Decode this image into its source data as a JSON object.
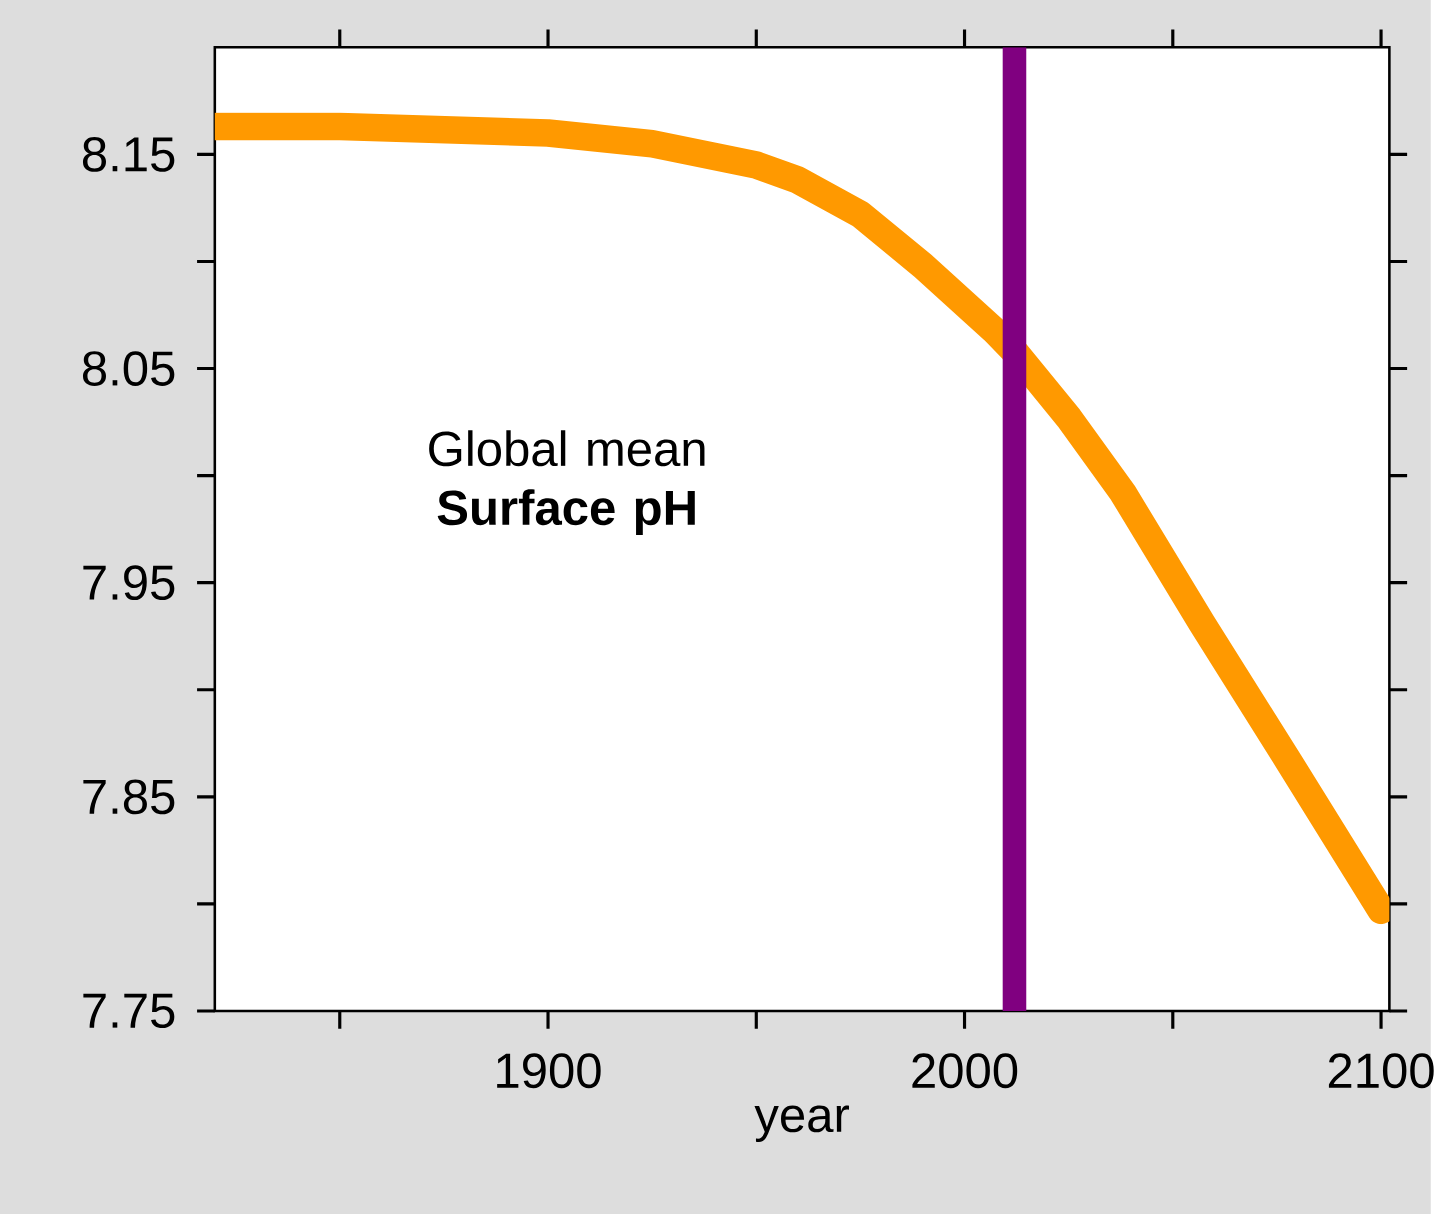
{
  "chart_data": {
    "type": "line",
    "xlabel": "year",
    "annotations": [
      "Global mean **Surface pH**"
    ],
    "series": [
      {
        "color": "#ff9900",
        "x": [
          1820,
          1850,
          1900,
          1925,
          1950,
          1960,
          1975,
          1990,
          2007,
          2012,
          2025,
          2038,
          2057,
          2078,
          2100
        ],
        "values": [
          8.163,
          8.163,
          8.16,
          8.155,
          8.145,
          8.138,
          8.122,
          8.098,
          8.068,
          8.058,
          8.027,
          7.992,
          7.931,
          7.866,
          7.797
        ]
      }
    ],
    "xlim": [
      1820,
      2102
    ],
    "ylim": [
      7.75,
      8.2
    ],
    "xticks": [
      {
        "value": 1850,
        "label": null
      },
      1900,
      {
        "value": 1950,
        "label": null
      },
      2000,
      {
        "value": 2050,
        "label": null
      },
      2100
    ],
    "yticks": [
      7.75,
      {
        "value": 7.8,
        "label": null
      },
      7.85,
      {
        "value": 7.9,
        "label": null
      },
      7.95,
      {
        "value": 8.0,
        "label": null
      },
      8.05,
      {
        "value": 8.1,
        "label": null
      },
      8.15
    ],
    "ref_lines": [
      {
        "axis": "x",
        "value": 2012,
        "color": "#800080"
      }
    ],
    "marker": "none",
    "line_style": "solid"
  }
}
